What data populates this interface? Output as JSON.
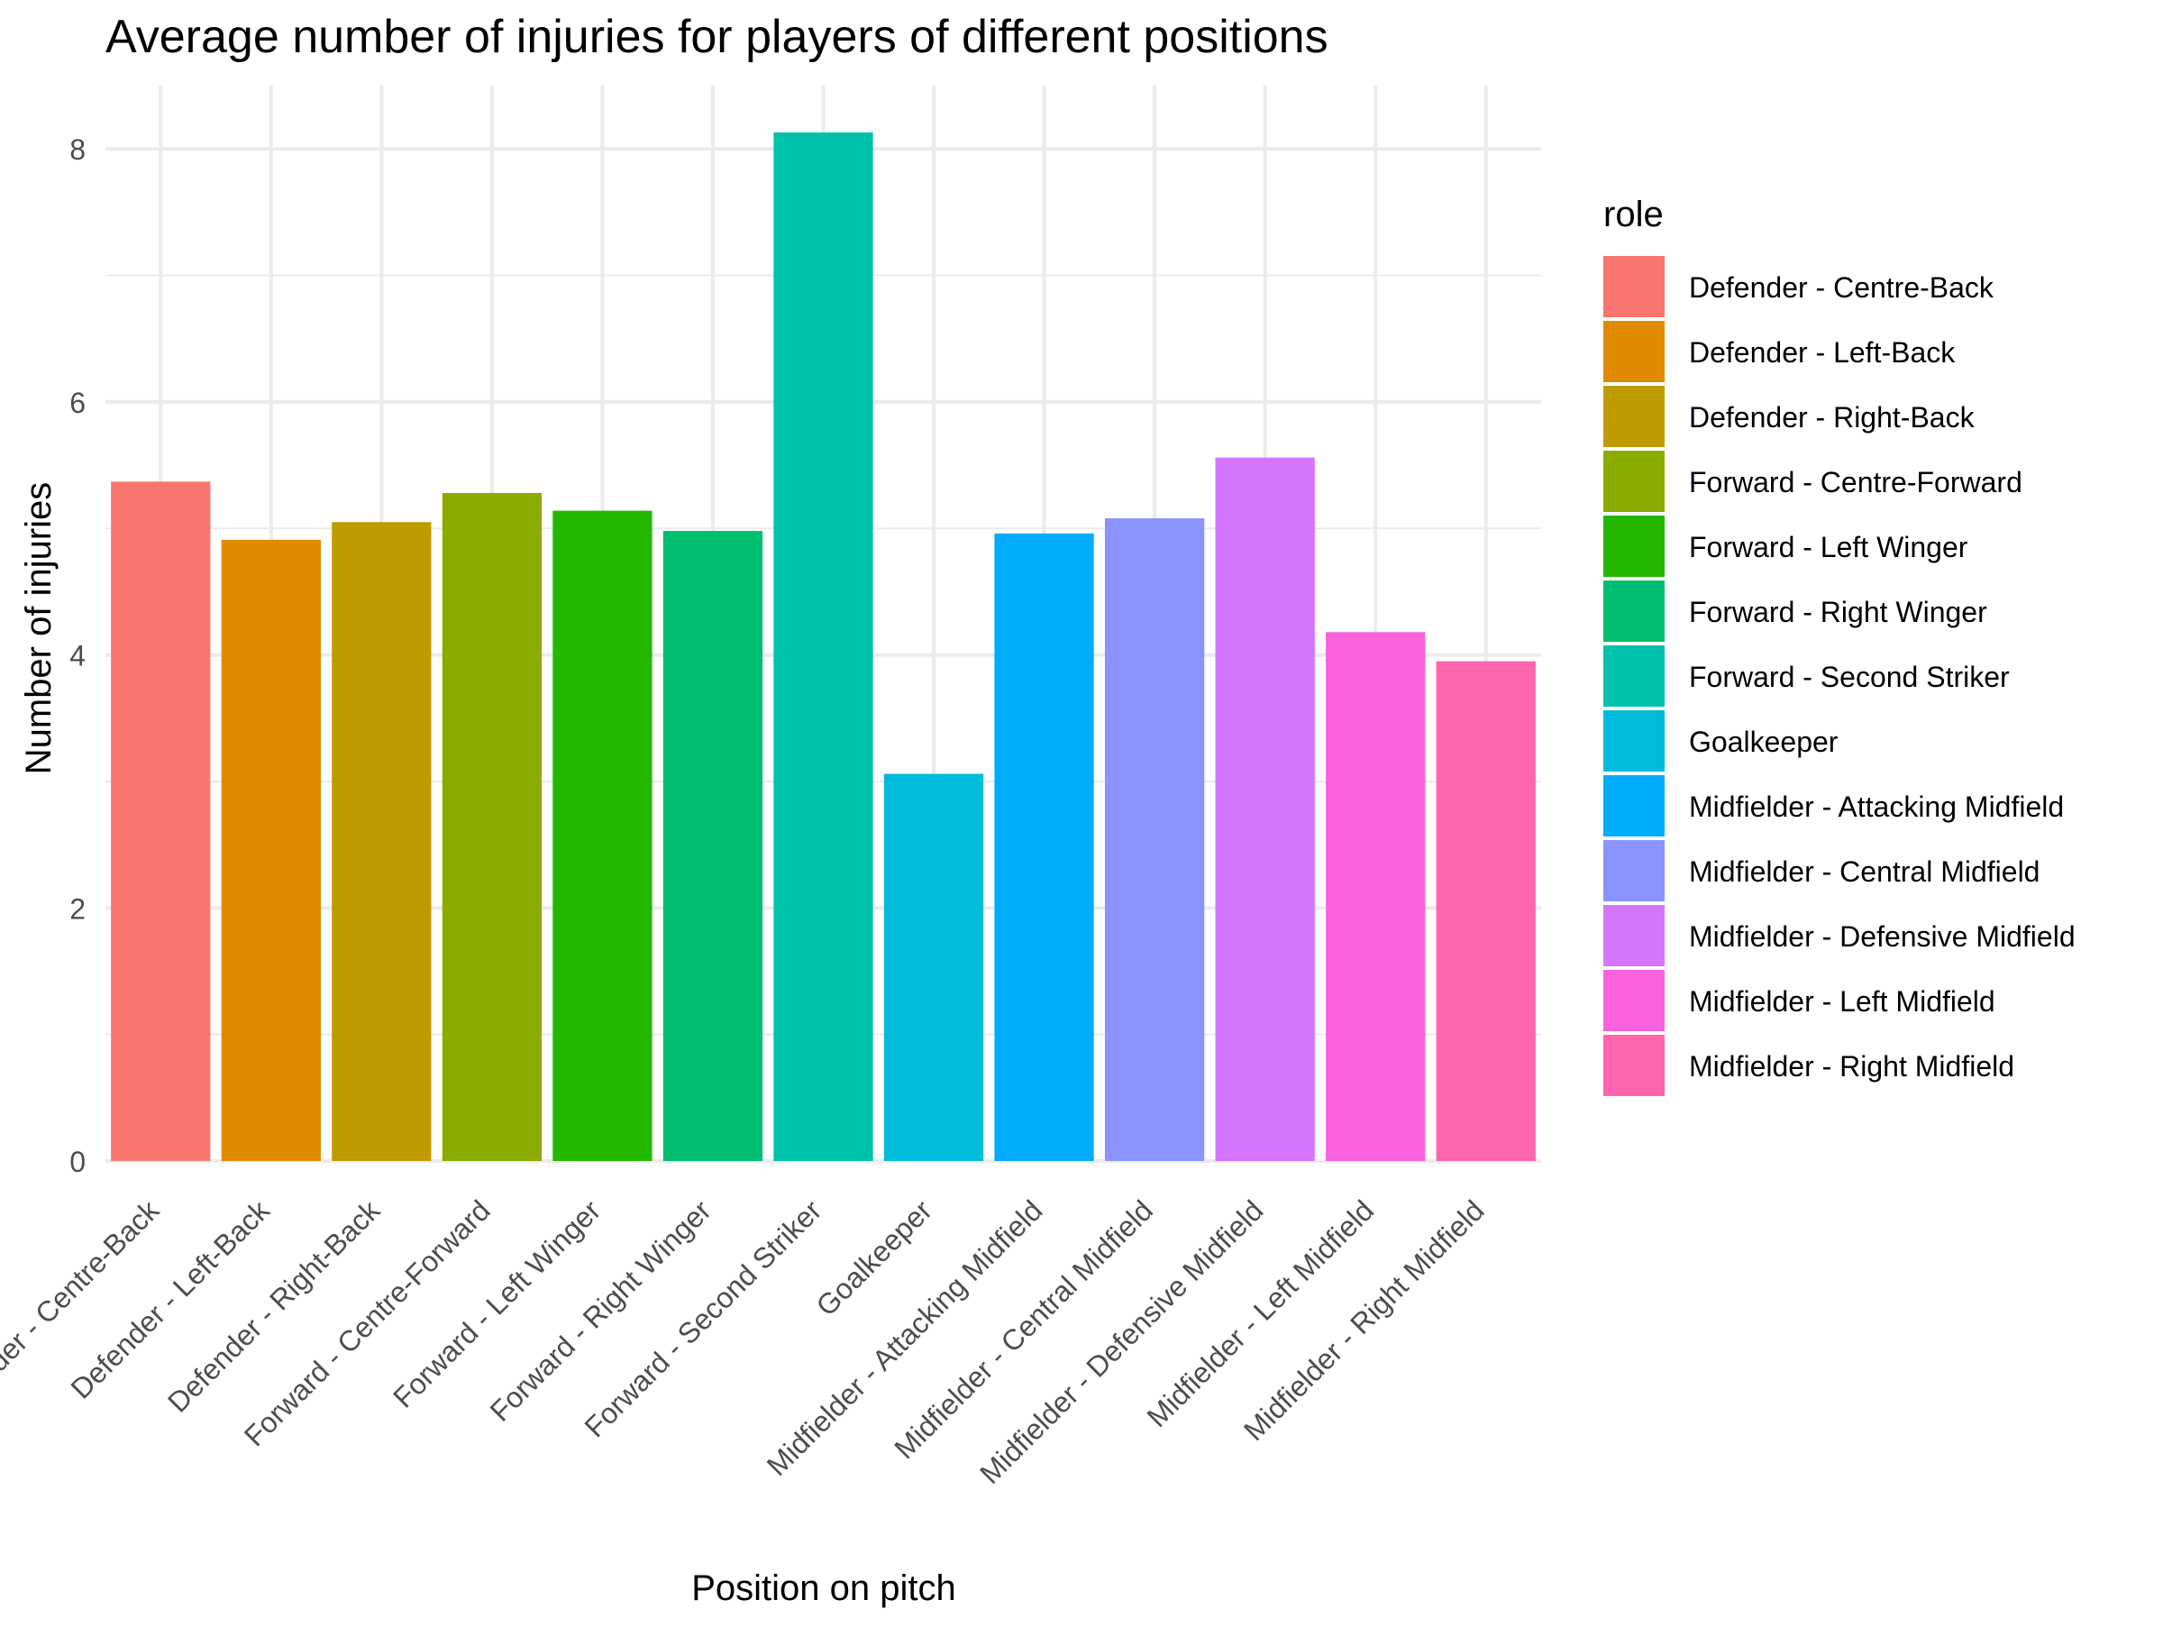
{
  "chart_data": {
    "type": "bar",
    "title": "Average number of injuries for players of different positions",
    "xlabel": "Position on pitch",
    "ylabel": "Number of injuries",
    "legend_title": "role",
    "legend_position": "right",
    "grid": true,
    "ylim": [
      0,
      8.5
    ],
    "yticks": [
      0,
      2,
      4,
      6,
      8
    ],
    "categories": [
      "Defender - Centre-Back",
      "Defender - Left-Back",
      "Defender - Right-Back",
      "Forward - Centre-Forward",
      "Forward - Left Winger",
      "Forward - Right Winger",
      "Forward - Second Striker",
      "Goalkeeper",
      "Midfielder - Attacking Midfield",
      "Midfielder - Central Midfield",
      "Midfielder - Defensive Midfield",
      "Midfielder - Left Midfield",
      "Midfielder - Right Midfield"
    ],
    "x_tick_labels": [
      "der - Centre-Back",
      "Defender - Left-Back",
      "Defender - Right-Back",
      "Forward - Centre-Forward",
      "Forward - Left Winger",
      "Forward - Right Winger",
      "Forward - Second Striker",
      "Goalkeeper",
      "Midfielder - Attacking Midfield",
      "Midfielder - Central Midfield",
      "Midfielder - Defensive Midfield",
      "Midfielder - Left Midfield",
      "Midfielder - Right Midfield"
    ],
    "values": [
      5.37,
      4.91,
      5.05,
      5.28,
      5.14,
      4.98,
      8.13,
      3.06,
      4.96,
      5.08,
      5.56,
      4.18,
      3.95
    ],
    "colors": [
      "#F8766D",
      "#E18A00",
      "#BE9C00",
      "#8CAB00",
      "#24B700",
      "#00BE70",
      "#00C1AB",
      "#00BBDA",
      "#00ACFC",
      "#8B93FF",
      "#D575FE",
      "#F962DD",
      "#FF65AC"
    ]
  }
}
